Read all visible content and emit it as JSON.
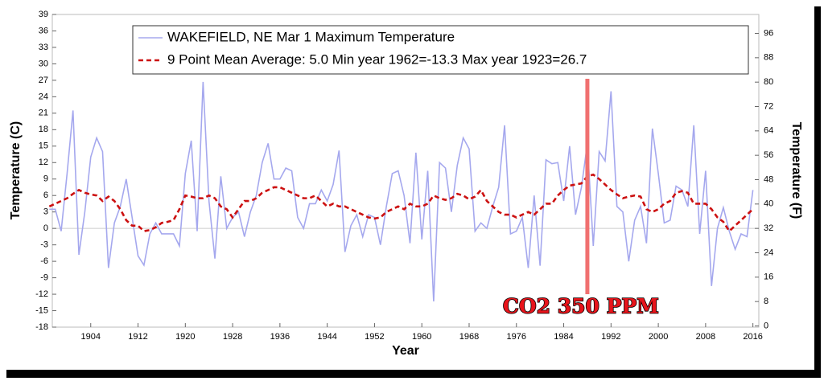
{
  "chart_data": {
    "type": "line",
    "xlabel": "Year",
    "ylabel": "Temperature (C)",
    "y2label": "Temperature (F)",
    "x": [
      1897,
      1898,
      1899,
      1900,
      1901,
      1902,
      1903,
      1904,
      1905,
      1906,
      1907,
      1908,
      1909,
      1910,
      1911,
      1912,
      1913,
      1914,
      1915,
      1916,
      1917,
      1918,
      1919,
      1920,
      1921,
      1922,
      1923,
      1924,
      1925,
      1926,
      1927,
      1928,
      1929,
      1930,
      1931,
      1932,
      1933,
      1934,
      1935,
      1936,
      1937,
      1938,
      1939,
      1940,
      1941,
      1942,
      1943,
      1944,
      1945,
      1946,
      1947,
      1948,
      1949,
      1950,
      1951,
      1952,
      1953,
      1954,
      1955,
      1956,
      1957,
      1958,
      1959,
      1960,
      1961,
      1962,
      1963,
      1964,
      1965,
      1966,
      1967,
      1968,
      1969,
      1970,
      1971,
      1972,
      1973,
      1974,
      1975,
      1976,
      1977,
      1978,
      1979,
      1980,
      1981,
      1982,
      1983,
      1984,
      1985,
      1986,
      1987,
      1988,
      1989,
      1990,
      1991,
      1992,
      1993,
      1994,
      1995,
      1996,
      1997,
      1998,
      1999,
      2000,
      2001,
      2002,
      2003,
      2004,
      2005,
      2006,
      2007,
      2008,
      2009,
      2010,
      2011,
      2012,
      2013,
      2014,
      2015,
      2016
    ],
    "series": [
      {
        "name": "WAKEFIELD, NE  Mar 1  Maximum Temperature",
        "color": "#a5a8ee",
        "style": "solid",
        "values": [
          3.5,
          3.5,
          -0.5,
          10,
          21.5,
          -4.8,
          3,
          13,
          16.5,
          14,
          -7.2,
          1,
          4,
          9,
          2,
          -5,
          -6.7,
          -1,
          1,
          -1,
          -1,
          -1,
          -3.2,
          10,
          16,
          -0.5,
          26.7,
          5,
          -5.5,
          9.5,
          0,
          2,
          3,
          -1.5,
          3,
          6,
          12,
          15.5,
          9,
          9,
          11,
          10.5,
          2,
          0,
          4.5,
          4.5,
          7,
          5,
          8,
          14.2,
          -4.3,
          0.5,
          2.5,
          -1.5,
          2.5,
          2,
          -3,
          4,
          10,
          10.5,
          6,
          -2.7,
          13.8,
          -2,
          10.5,
          -13.3,
          12,
          11,
          3,
          11.5,
          16.5,
          14.5,
          -0.5,
          1,
          0,
          4,
          7.5,
          18.8,
          -1,
          -0.5,
          2,
          -7.2,
          6,
          -6.8,
          12.5,
          11.8,
          12,
          5,
          15,
          2.5,
          7.5,
          15.5,
          -3.2,
          14,
          12.3,
          25,
          4,
          3,
          -6,
          1.5,
          4,
          -2.7,
          18.2,
          10,
          1,
          1.5,
          7.7,
          7,
          4,
          18.8,
          -1,
          10.5,
          -10.5,
          0,
          3.8,
          -0.5,
          -3.8,
          -1,
          -1.5,
          7
        ]
      },
      {
        "name": "9 Point Mean  Average: 5.0  Min year 1962=-13.3  Max year 1923=26.7",
        "color": "#cc1111",
        "style": "dashed",
        "values": [
          4,
          4.5,
          5,
          5.5,
          6.3,
          7,
          6.5,
          6.2,
          6,
          5,
          5.8,
          5,
          3.5,
          1.5,
          0.5,
          0.5,
          -0.5,
          -0.3,
          0.2,
          1,
          1.2,
          1.5,
          3.5,
          6,
          5.8,
          5.5,
          5.5,
          6,
          5.5,
          4,
          3.5,
          2,
          3.5,
          5,
          5,
          5.5,
          6.5,
          7,
          7.5,
          7.5,
          7,
          6.5,
          6,
          5.5,
          5.5,
          6,
          5,
          4,
          4.5,
          4,
          4,
          3.5,
          3,
          2.5,
          2,
          1.8,
          2,
          3,
          3.5,
          4,
          3.5,
          4.5,
          4,
          4,
          4.5,
          6,
          5.5,
          5.2,
          5.5,
          6.3,
          6,
          5.3,
          5.8,
          7,
          5,
          4,
          3,
          2.5,
          2.5,
          2,
          2.5,
          3,
          2.5,
          3.5,
          4.5,
          4.5,
          6,
          7,
          7.8,
          8,
          8.2,
          9.5,
          9.8,
          9,
          8,
          7,
          6.2,
          5.5,
          5.8,
          6,
          5.8,
          3.5,
          3,
          3.5,
          4.5,
          5,
          6.5,
          6.8,
          6.5,
          4.5,
          4.5,
          4.5,
          3.5,
          2,
          1.2,
          -0.5,
          0.5,
          1.5,
          2.5,
          3.5
        ]
      }
    ],
    "xlim": [
      1897.5,
      2017
    ],
    "xticks": [
      1904,
      1912,
      1920,
      1928,
      1936,
      1944,
      1952,
      1960,
      1968,
      1976,
      1984,
      1992,
      2000,
      2008,
      2016
    ],
    "ylim": [
      -18,
      39
    ],
    "yticks": [
      -18,
      -15,
      -12,
      -9,
      -6,
      -3,
      0,
      3,
      6,
      9,
      12,
      15,
      18,
      21,
      24,
      27,
      30,
      33,
      36,
      39
    ],
    "y2lim": [
      -0.4,
      102.2
    ],
    "y2ticks": [
      0,
      8,
      16,
      24,
      32,
      40,
      48,
      56,
      64,
      72,
      80,
      88,
      96
    ],
    "grid": false,
    "legend": "top",
    "annotation": {
      "text": "CO2 350 PPM",
      "x": 1988,
      "color": "#f07070"
    }
  }
}
